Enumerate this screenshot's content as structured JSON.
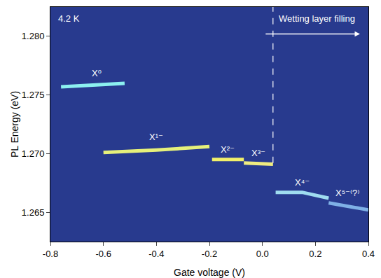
{
  "chart_data": {
    "type": "line",
    "x_label": "Gate voltage (V)",
    "y_label": "PL Energy (eV)",
    "xlim": [
      -0.8,
      0.4
    ],
    "xticks": [
      -0.8,
      -0.6,
      -0.4,
      -0.2,
      {
        "value": 0,
        "label": "0.0"
      },
      0.2,
      0.4
    ],
    "ylim": [
      1.2625,
      1.2825
    ],
    "yticks": [
      1.265,
      {
        "value": 1.27,
        "label": "1.270"
      },
      1.275,
      {
        "value": 1.28,
        "label": "1.280"
      }
    ],
    "grid": false,
    "series": [
      {
        "name": "X⁰",
        "color": "#8cf0f0",
        "x": [
          -0.76,
          -0.6,
          -0.52
        ],
        "values": [
          1.2757,
          1.2759,
          1.276
        ]
      },
      {
        "name": "X¹⁻",
        "color": "#e6f07a",
        "x": [
          -0.6,
          -0.4,
          -0.2
        ],
        "values": [
          1.2701,
          1.2703,
          1.2706
        ]
      },
      {
        "name": "X²⁻",
        "color": "#f2f06a",
        "x": [
          -0.19,
          -0.07
        ],
        "values": [
          1.2695,
          1.2695
        ]
      },
      {
        "name": "X³⁻",
        "color": "#f0ec80",
        "x": [
          -0.07,
          0.04
        ],
        "values": [
          1.2692,
          1.2691
        ]
      },
      {
        "name": "X⁴⁻",
        "color": "#9fdcf0",
        "x": [
          0.05,
          0.15,
          0.25
        ],
        "values": [
          1.2667,
          1.2667,
          1.2662
        ]
      },
      {
        "name": "X⁵⁻⁽?⁾",
        "color": "#7fb0e6",
        "x": [
          0.25,
          0.32,
          0.4
        ],
        "values": [
          1.2658,
          1.2655,
          1.2652
        ]
      }
    ],
    "annotations": [
      {
        "text": "4.2 K"
      },
      {
        "text": "Wetting layer filling",
        "x": 0.04,
        "y": 1.2692
      }
    ]
  }
}
